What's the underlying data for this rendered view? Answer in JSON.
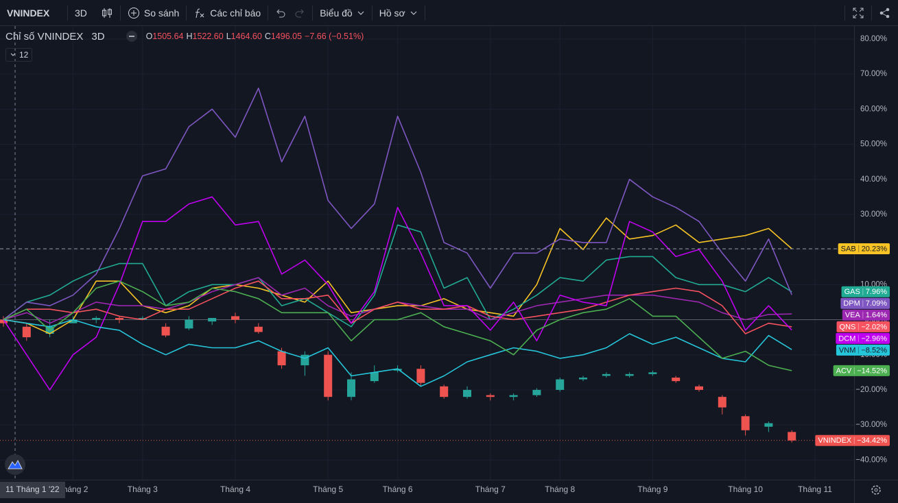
{
  "toolbar": {
    "symbol": "VNINDEX",
    "interval": "3D",
    "compare": "So sánh",
    "indicators": "Các chỉ báo",
    "chart_menu": "Biểu đồ",
    "profile_menu": "Hồ sơ"
  },
  "chart_data": {
    "type": "candlestick",
    "title": "Chỉ số VNINDEX",
    "interval": "3D",
    "ohlc_legend": [
      {
        "label": "O",
        "value": "1505.64"
      },
      {
        "label": "H",
        "value": "1522.60"
      },
      {
        "label": "L",
        "value": "1464.60"
      },
      {
        "label": "C",
        "value": "1496.05"
      }
    ],
    "change": "−7.66 (−0.51%)",
    "indicator_count": 12,
    "crosshair_label": "11 Tháng 1 '22",
    "categories": [
      null,
      null,
      null,
      "Tháng 2",
      null,
      null,
      "Tháng 3",
      null,
      null,
      null,
      "Tháng 4",
      null,
      null,
      null,
      "Tháng 5",
      null,
      null,
      "Tháng 6",
      null,
      null,
      null,
      "Tháng 7",
      null,
      null,
      "Tháng 8",
      null,
      null,
      null,
      "Tháng 9",
      null,
      null,
      null,
      "Tháng 10",
      null,
      null,
      "Tháng 11"
    ],
    "ylim": [
      -45.6,
      83.7
    ],
    "yticks": [
      {
        "value": 80,
        "label": "80.00%"
      },
      {
        "value": 70,
        "label": "70.00%"
      },
      {
        "value": 60,
        "label": "60.00%"
      },
      {
        "value": 50,
        "label": "50.00%"
      },
      {
        "value": 40,
        "label": "40.00%"
      },
      {
        "value": 30,
        "label": "30.00%"
      },
      {
        "value": 20,
        "label": "20.00%"
      },
      {
        "value": 10,
        "label": "10.00%"
      },
      {
        "value": 0,
        "label": "0.00%"
      },
      {
        "value": -10,
        "label": "−10.00%"
      },
      {
        "value": -20,
        "label": "−20.00%"
      },
      {
        "value": -30,
        "label": "−30.00%"
      },
      {
        "value": -40,
        "label": "−40.00%"
      }
    ],
    "grid": true,
    "series": [
      {
        "name": "VNINDEX",
        "type": "candlestick",
        "up_color": "#26a69a",
        "down_color": "#ef5350",
        "price_line": "dotted",
        "open": [
          0,
          -2,
          -4,
          -1,
          0,
          0.5,
          0,
          -2,
          -2.5,
          -0.5,
          1,
          -2,
          -9,
          -13,
          -10,
          -22,
          -17.5,
          -14.5,
          -14,
          -19,
          -22,
          -21.5,
          -22,
          -21.5,
          -20,
          -17,
          -16,
          -16,
          -15.5,
          -16.5,
          -19,
          -22,
          -27.5,
          -30.5,
          -32,
          null
        ],
        "high": [
          1,
          -1,
          0,
          1,
          1,
          1,
          1,
          -1,
          1,
          0.5,
          2,
          -1,
          -8,
          -9,
          -9,
          -15,
          -13,
          -13,
          -13,
          -18.5,
          -19,
          -21,
          -21,
          -19.5,
          -16.5,
          -16,
          -15,
          -15,
          -14.5,
          -16,
          -18.5,
          -21.5,
          -27,
          -29,
          -31.5,
          null
        ],
        "low": [
          -2,
          -6,
          -5,
          -1,
          -1,
          -1,
          0,
          -5,
          -3,
          -1.5,
          -1,
          -4,
          -14,
          -16,
          -23,
          -23,
          -18,
          -15,
          -19,
          -22.5,
          -22.5,
          -23,
          -23,
          -22,
          -20.5,
          -17.5,
          -16.5,
          -16.5,
          -16,
          -18,
          -20.5,
          -27,
          -33,
          -32,
          -35,
          null
        ],
        "close": [
          -1,
          -5,
          -2,
          0,
          0.5,
          0,
          0.5,
          -4.5,
          0,
          0.5,
          0,
          -3.5,
          -13,
          -10,
          -22,
          -17,
          -15,
          -14,
          -18,
          -22,
          -20,
          -22,
          -21.5,
          -20,
          -17,
          -16.5,
          -15.5,
          -15.5,
          -15,
          -17.5,
          -20,
          -25,
          -31.5,
          -29.5,
          -34.42,
          null
        ],
        "last_label": "−34.42%"
      },
      {
        "name": "SAB",
        "type": "line",
        "color": "#f7c325",
        "price_line": "dashed",
        "values": [
          0,
          -1,
          -4,
          0,
          11,
          11,
          4,
          2,
          4,
          9,
          10,
          9,
          7,
          5,
          11,
          2,
          3,
          4,
          4,
          6,
          3,
          2,
          1,
          10,
          26,
          20,
          29,
          23,
          24,
          27,
          22,
          23,
          24,
          26,
          20.23,
          null
        ],
        "last_label": "20.23%"
      },
      {
        "name": "GAS",
        "type": "line",
        "color": "#22ab94",
        "values": [
          0,
          5,
          7,
          11,
          14,
          16,
          16,
          4,
          8,
          10,
          10,
          12,
          4,
          6,
          2,
          -2,
          7,
          27,
          25,
          9,
          12,
          0,
          3,
          7,
          12,
          11,
          17,
          18,
          18,
          12,
          10,
          10,
          8,
          12,
          7.96,
          null
        ],
        "last_label": "7.96%"
      },
      {
        "name": "DPM",
        "type": "line",
        "color": "#7e57c2",
        "values": [
          0,
          5,
          4,
          7,
          13,
          26,
          41,
          43,
          55,
          60,
          52,
          66,
          45,
          58,
          34,
          26,
          33,
          58,
          42,
          22,
          19,
          9,
          19,
          19,
          23,
          22,
          22,
          40,
          35,
          32,
          28,
          19,
          11,
          23,
          7.09,
          null
        ],
        "last_label": "7.09%"
      },
      {
        "name": "VEA",
        "type": "line",
        "color": "#9c27b0",
        "values": [
          0,
          2,
          -1,
          2,
          5,
          4,
          4,
          3,
          5,
          8,
          10,
          12,
          7,
          9,
          4,
          1,
          3,
          5,
          4,
          3,
          3,
          0,
          2,
          4,
          5,
          6,
          7,
          7,
          7,
          6,
          5,
          2,
          0,
          1.5,
          1.64,
          null
        ],
        "last_label": "1.64%"
      },
      {
        "name": "QNS",
        "type": "line",
        "color": "#f7525f",
        "values": [
          0,
          3,
          3,
          2,
          3,
          1,
          0,
          3,
          3,
          6,
          9,
          11,
          6,
          6,
          7,
          -1,
          3,
          5,
          3,
          3,
          4,
          1,
          0,
          1,
          2,
          3,
          5,
          7,
          8,
          9,
          8,
          4,
          -4,
          -1,
          -2.02,
          null
        ],
        "last_label": "−2.02%"
      },
      {
        "name": "DCM",
        "type": "line",
        "color": "#c000f0",
        "values": [
          0,
          -10,
          -20,
          -10,
          -5,
          10,
          28,
          28,
          33,
          35,
          27,
          28,
          13,
          17,
          10,
          -1,
          8,
          32,
          19,
          4,
          4,
          -3,
          5,
          -6,
          7,
          5,
          4,
          28,
          25,
          18,
          20,
          11,
          -3,
          4,
          -2.96,
          null
        ],
        "last_label": "−2.96%"
      },
      {
        "name": "VNM",
        "type": "line",
        "color": "#26c6da",
        "values": [
          0,
          -1,
          -2,
          0,
          -2,
          -3,
          -7,
          -10,
          -7,
          -8,
          -8,
          -6,
          -9,
          -11,
          -8,
          -16,
          -15,
          -14,
          -19,
          -16,
          -12,
          -10,
          -8,
          -9,
          -11,
          -10,
          -8,
          -4,
          -7,
          -5,
          -8,
          -11,
          -12,
          -4.5,
          -8.52,
          null
        ],
        "last_label": "−8.52%"
      },
      {
        "name": "ACV",
        "type": "line",
        "color": "#4caf50",
        "values": [
          0,
          3,
          -3,
          2,
          9,
          11,
          8,
          4,
          5,
          9,
          8,
          6,
          2,
          2,
          2,
          -6,
          0,
          0,
          2,
          -2,
          -4,
          -6,
          -10,
          -3,
          0,
          2,
          3,
          6,
          1,
          1,
          -5,
          -11,
          -9,
          -13,
          -14.52,
          null
        ],
        "last_label": "−14.52%"
      }
    ]
  }
}
